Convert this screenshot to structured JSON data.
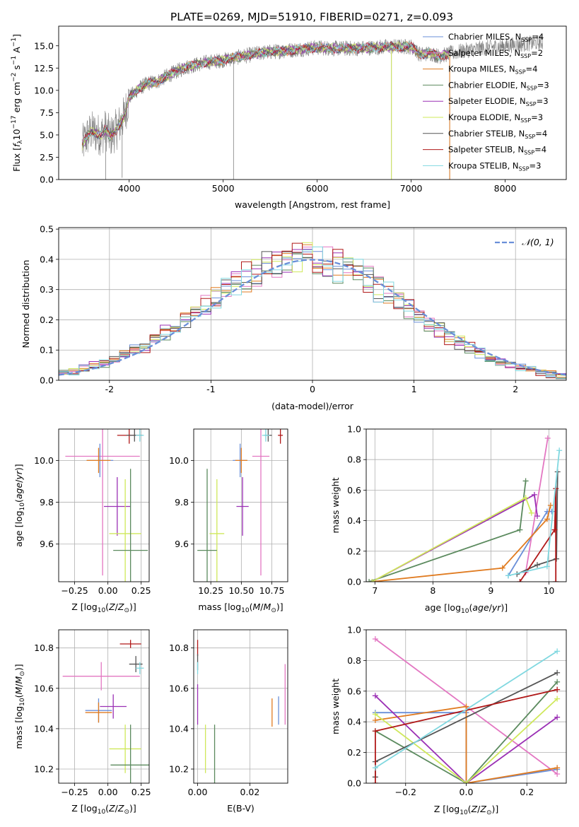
{
  "figure_title": "PLATE=0269, MJD=51910, FIBERID=0271, z=0.093",
  "colors": {
    "Chabrier MILES": "#6a8fd8",
    "Salpeter MILES": "#e377c2",
    "Kroupa MILES": "#e07b20",
    "Chabrier ELODIE": "#5b8a5e",
    "Salpeter ELODIE": "#9b30b5",
    "Kroupa ELODIE": "#cfe85a",
    "Chabrier STELIB": "#555555",
    "Salpeter STELIB": "#b01818",
    "Kroupa STELIB": "#80d8e0"
  },
  "chart_data": [
    {
      "id": "spectrum",
      "type": "line",
      "title": "PLATE=0269, MJD=51910, FIBERID=0271, z=0.093",
      "xlabel": "wavelength [Angstrom, rest frame]",
      "ylabel": "Flux [f_λ10^-17 erg cm^-2 s^-1 A^-1]",
      "xlim": [
        3250,
        8650
      ],
      "ylim": [
        0,
        17.2
      ],
      "xticks": [
        4000,
        5000,
        6000,
        7000,
        8000
      ],
      "yticks": [
        0.0,
        2.5,
        5.0,
        7.5,
        10.0,
        12.5,
        15.0
      ],
      "legend_position": "right",
      "legend": [
        {
          "label": "Chabrier MILES, N_SSP=4",
          "main": "Chabrier MILES, N",
          "sub": "SSP",
          "tail": "=4",
          "color": "#6a8fd8"
        },
        {
          "label": "Salpeter MILES, N_SSP=2",
          "main": "Salpeter MILES, N",
          "sub": "SSP",
          "tail": "=2",
          "color": "#e377c2"
        },
        {
          "label": "Kroupa MILES, N_SSP=4",
          "main": "Kroupa MILES, N",
          "sub": "SSP",
          "tail": "=4",
          "color": "#e07b20"
        },
        {
          "label": "Chabrier ELODIE, N_SSP=3",
          "main": "Chabrier ELODIE, N",
          "sub": "SSP",
          "tail": "=3",
          "color": "#5b8a5e"
        },
        {
          "label": "Salpeter ELODIE, N_SSP=3",
          "main": "Salpeter ELODIE, N",
          "sub": "SSP",
          "tail": "=3",
          "color": "#9b30b5"
        },
        {
          "label": "Kroupa ELODIE, N_SSP=3",
          "main": "Kroupa ELODIE, N",
          "sub": "SSP",
          "tail": "=3",
          "color": "#cfe85a"
        },
        {
          "label": "Chabrier STELIB, N_SSP=4",
          "main": "Chabrier STELIB, N",
          "sub": "SSP",
          "tail": "=4",
          "color": "#555555"
        },
        {
          "label": "Salpeter STELIB, N_SSP=4",
          "main": "Salpeter STELIB, N",
          "sub": "SSP",
          "tail": "=4",
          "color": "#b01818"
        },
        {
          "label": "Kroupa STELIB, N_SSP=3",
          "main": "Kroupa STELIB, N",
          "sub": "SSP",
          "tail": "=3",
          "color": "#80d8e0"
        }
      ],
      "model_color": "#80d8e0",
      "model_wavelength_range": [
        3500,
        7400
      ],
      "data_color": "#808080",
      "data_wavelength_range": [
        3500,
        8400
      ],
      "continuum_x": [
        3500,
        3550,
        3600,
        3650,
        3700,
        3750,
        3800,
        3850,
        3900,
        3950,
        4000,
        4100,
        4200,
        4300,
        4400,
        4500,
        4600,
        4800,
        5000,
        5200,
        5400,
        5600,
        5800,
        6000,
        6200,
        6400,
        6600,
        6800,
        7000,
        7100,
        7200,
        7300,
        7400,
        7600,
        7800,
        8000,
        8200,
        8400
      ],
      "continuum_y": [
        3.8,
        4.8,
        5.4,
        5.2,
        5.0,
        5.6,
        4.8,
        5.4,
        6.2,
        7.2,
        9.2,
        10.2,
        10.8,
        11.0,
        11.6,
        12.1,
        12.6,
        13.1,
        13.4,
        13.8,
        14.2,
        14.4,
        14.6,
        14.8,
        14.7,
        14.7,
        14.8,
        14.9,
        14.9,
        14.0,
        14.2,
        13.8,
        14.1,
        14.5,
        14.8,
        15.0,
        15.2,
        15.4
      ],
      "dips": [
        {
          "x": 3750,
          "y": 0.0
        },
        {
          "x": 3925,
          "y": 0.2
        },
        {
          "x": 5110,
          "y": 0.0
        },
        {
          "x": 6790,
          "y": 0.0
        },
        {
          "x": 7410,
          "y": 0.0
        }
      ]
    },
    {
      "id": "residuals",
      "type": "line",
      "xlabel": "(data-model)/error",
      "ylabel": "Normed distribution",
      "xlim": [
        -2.5,
        2.5
      ],
      "ylim": [
        0,
        0.505
      ],
      "xticks": [
        -2,
        -1,
        0,
        1,
        2
      ],
      "yticks": [
        0.0,
        0.1,
        0.2,
        0.3,
        0.4,
        0.5
      ],
      "grid": true,
      "legend_position": "top-right",
      "gaussian": {
        "label": "𝒩(0, 1)",
        "mean": 0,
        "sigma": 1,
        "color": "#6a8fd8"
      },
      "bin_width": 0.1,
      "bin_start": -2.5,
      "bin_count": 50
    },
    {
      "id": "age_vs_Z",
      "type": "scatter",
      "xlabel": "Z [log10(Z/Z⊙)]",
      "ylabel": "age [log10(age/yr)]",
      "xlim": [
        -0.37,
        0.31
      ],
      "ylim": [
        9.42,
        10.15
      ],
      "xticks": [
        -0.25,
        0.0,
        0.25
      ],
      "yticks": [
        9.6,
        9.8,
        10.0
      ],
      "points": [
        {
          "name": "Salpeter MILES",
          "x": -0.04,
          "y": 10.02,
          "xerr": 0.28,
          "yerr": 0.57
        },
        {
          "name": "Chabrier MILES",
          "x": -0.06,
          "y": 10.0,
          "xerr": 0.1,
          "yerr": 0.08
        },
        {
          "name": "Kroupa MILES",
          "x": -0.07,
          "y": 10.0,
          "xerr": 0.09,
          "yerr": 0.06
        },
        {
          "name": "Salpeter STELIB",
          "x": 0.16,
          "y": 10.12,
          "xerr": 0.09,
          "yerr": 0.04
        },
        {
          "name": "Chabrier STELIB",
          "x": 0.2,
          "y": 10.12,
          "xerr": 0.06,
          "yerr": 0.03
        },
        {
          "name": "Kroupa STELIB",
          "x": 0.24,
          "y": 10.12,
          "xerr": 0.03,
          "yerr": 0.03
        },
        {
          "name": "Salpeter ELODIE",
          "x": 0.07,
          "y": 9.78,
          "xerr": 0.1,
          "yerr": 0.14
        },
        {
          "name": "Kroupa ELODIE",
          "x": 0.13,
          "y": 9.65,
          "xerr": 0.12,
          "yerr": 0.26
        },
        {
          "name": "Chabrier ELODIE",
          "x": 0.17,
          "y": 9.57,
          "xerr": 0.13,
          "yerr": 0.39
        }
      ]
    },
    {
      "id": "age_vs_mass",
      "type": "scatter",
      "xlabel": "mass [log10(M/M⊙)]",
      "ylabel": "",
      "xlim": [
        10.11,
        10.88
      ],
      "ylim": [
        9.42,
        10.15
      ],
      "xticks": [
        10.25,
        10.5,
        10.75
      ],
      "yticks": [
        9.6,
        9.8,
        10.0
      ],
      "points": [
        {
          "name": "Salpeter MILES",
          "x": 10.66,
          "y": 10.02,
          "xerr": 0.07,
          "yerr": 0.57
        },
        {
          "name": "Chabrier MILES",
          "x": 10.49,
          "y": 10.0,
          "xerr": 0.06,
          "yerr": 0.08
        },
        {
          "name": "Kroupa MILES",
          "x": 10.5,
          "y": 10.0,
          "xerr": 0.05,
          "yerr": 0.06
        },
        {
          "name": "Salpeter STELIB",
          "x": 10.82,
          "y": 10.12,
          "xerr": 0.02,
          "yerr": 0.04
        },
        {
          "name": "Chabrier STELIB",
          "x": 10.72,
          "y": 10.12,
          "xerr": 0.03,
          "yerr": 0.03
        },
        {
          "name": "Kroupa STELIB",
          "x": 10.7,
          "y": 10.12,
          "xerr": 0.03,
          "yerr": 0.03
        },
        {
          "name": "Salpeter ELODIE",
          "x": 10.51,
          "y": 9.78,
          "xerr": 0.05,
          "yerr": 0.14
        },
        {
          "name": "Kroupa ELODIE",
          "x": 10.3,
          "y": 9.65,
          "xerr": 0.06,
          "yerr": 0.26
        },
        {
          "name": "Chabrier ELODIE",
          "x": 10.22,
          "y": 9.57,
          "xerr": 0.08,
          "yerr": 0.39
        }
      ]
    },
    {
      "id": "weight_vs_age",
      "type": "line",
      "xlabel": "age [log10(age/yr)]",
      "ylabel": "mass weight",
      "xlim": [
        6.85,
        10.3
      ],
      "ylim": [
        0,
        1.0
      ],
      "xticks": [
        7,
        8,
        9,
        10
      ],
      "yticks": [
        0.0,
        0.2,
        0.4,
        0.6,
        0.8,
        1.0
      ],
      "series": [
        {
          "name": "Chabrier MILES",
          "x": [
            9.3,
            9.97,
            10.05
          ],
          "y": [
            0.04,
            0.46,
            0.46
          ]
        },
        {
          "name": "Salpeter MILES",
          "x": [
            9.6,
            9.98
          ],
          "y": [
            0.06,
            0.94
          ]
        },
        {
          "name": "Kroupa MILES",
          "x": [
            6.95,
            9.2,
            9.97,
            10.03
          ],
          "y": [
            0.0,
            0.09,
            0.41,
            0.5
          ]
        },
        {
          "name": "Chabrier ELODIE",
          "x": [
            6.9,
            9.5,
            9.6
          ],
          "y": [
            0.0,
            0.34,
            0.66
          ]
        },
        {
          "name": "Salpeter ELODIE",
          "x": [
            6.95,
            9.75,
            9.8
          ],
          "y": [
            0.0,
            0.57,
            0.43
          ]
        },
        {
          "name": "Kroupa ELODIE",
          "x": [
            6.95,
            9.6,
            9.7
          ],
          "y": [
            0.0,
            0.55,
            0.45
          ]
        },
        {
          "name": "Chabrier STELIB",
          "x": [
            9.45,
            9.8,
            10.13,
            10.15
          ],
          "y": [
            0.05,
            0.11,
            0.15,
            0.72
          ]
        },
        {
          "name": "Salpeter STELIB",
          "x": [
            9.5,
            10.1,
            10.12,
            10.12
          ],
          "y": [
            0.0,
            0.34,
            0.61,
            0.0
          ]
        },
        {
          "name": "Kroupa STELIB",
          "x": [
            9.3,
            9.97,
            10.18
          ],
          "y": [
            0.04,
            0.1,
            0.86
          ]
        }
      ]
    },
    {
      "id": "mass_vs_Z",
      "type": "scatter",
      "xlabel": "Z [log10(Z/Z⊙)]",
      "ylabel": "mass [log10(M/M⊙)]",
      "xlim": [
        -0.37,
        0.31
      ],
      "ylim": [
        10.13,
        10.89
      ],
      "xticks": [
        -0.25,
        0.0,
        0.25
      ],
      "yticks": [
        10.2,
        10.4,
        10.6,
        10.8
      ],
      "points": [
        {
          "name": "Salpeter MILES",
          "x": -0.05,
          "y": 10.66,
          "xerr": 0.29,
          "yerr": 0.07
        },
        {
          "name": "Chabrier MILES",
          "x": -0.07,
          "y": 10.49,
          "xerr": 0.1,
          "yerr": 0.06
        },
        {
          "name": "Kroupa MILES",
          "x": -0.07,
          "y": 10.48,
          "xerr": 0.1,
          "yerr": 0.05
        },
        {
          "name": "Salpeter ELODIE",
          "x": 0.04,
          "y": 10.51,
          "xerr": 0.1,
          "yerr": 0.06
        },
        {
          "name": "Kroupa ELODIE",
          "x": 0.13,
          "y": 10.3,
          "xerr": 0.12,
          "yerr": 0.12
        },
        {
          "name": "Chabrier ELODIE",
          "x": 0.17,
          "y": 10.22,
          "xerr": 0.15,
          "yerr": 0.2
        },
        {
          "name": "Salpeter STELIB",
          "x": 0.17,
          "y": 10.82,
          "xerr": 0.08,
          "yerr": 0.02
        },
        {
          "name": "Chabrier STELIB",
          "x": 0.21,
          "y": 10.72,
          "xerr": 0.05,
          "yerr": 0.04
        },
        {
          "name": "Kroupa STELIB",
          "x": 0.24,
          "y": 10.7,
          "xerr": 0.03,
          "yerr": 0.03
        }
      ]
    },
    {
      "id": "mass_vs_EBV",
      "type": "scatter",
      "xlabel": "E(B-V)",
      "ylabel": "",
      "xlim": [
        -0.0015,
        0.0345
      ],
      "ylim": [
        10.13,
        10.89
      ],
      "xticks": [
        0.0,
        0.02
      ],
      "yticks": [
        10.2,
        10.4,
        10.6,
        10.8
      ],
      "points": [
        {
          "name": "Salpeter STELIB",
          "x": 0.0,
          "y": 10.8,
          "xerr": 0.0,
          "yerr": 0.04
        },
        {
          "name": "Chabrier STELIB",
          "x": 0.0,
          "y": 10.73,
          "xerr": 0.0,
          "yerr": 0.04
        },
        {
          "name": "Kroupa STELIB",
          "x": 0.0,
          "y": 10.7,
          "xerr": 0.0,
          "yerr": 0.03
        },
        {
          "name": "Salpeter ELODIE",
          "x": 0.0,
          "y": 10.52,
          "xerr": 0.0,
          "yerr": 0.1
        },
        {
          "name": "Kroupa ELODIE",
          "x": 0.003,
          "y": 10.3,
          "xerr": 0.0,
          "yerr": 0.12
        },
        {
          "name": "Chabrier ELODIE",
          "x": 0.0065,
          "y": 10.22,
          "xerr": 0.0,
          "yerr": 0.2
        },
        {
          "name": "Kroupa MILES",
          "x": 0.0285,
          "y": 10.48,
          "xerr": 0.0,
          "yerr": 0.07
        },
        {
          "name": "Chabrier MILES",
          "x": 0.031,
          "y": 10.49,
          "xerr": 0.0,
          "yerr": 0.07
        },
        {
          "name": "Salpeter MILES",
          "x": 0.0335,
          "y": 10.57,
          "xerr": 0.0,
          "yerr": 0.15
        }
      ]
    },
    {
      "id": "weight_vs_Z",
      "type": "line",
      "xlabel": "Z [log10(Z/Z⊙)]",
      "ylabel": "mass weight",
      "xlim": [
        -0.33,
        0.33
      ],
      "ylim": [
        0,
        1.0
      ],
      "xticks": [
        -0.2,
        0.0,
        0.2
      ],
      "yticks": [
        0.0,
        0.2,
        0.4,
        0.6,
        0.8,
        1.0
      ],
      "series": [
        {
          "name": "Chabrier MILES",
          "x": [
            -0.3,
            0.0,
            0.0,
            0.3
          ],
          "y": [
            0.46,
            0.46,
            0.0,
            0.09
          ]
        },
        {
          "name": "Salpeter MILES",
          "x": [
            -0.3,
            0.3
          ],
          "y": [
            0.94,
            0.06
          ]
        },
        {
          "name": "Kroupa MILES",
          "x": [
            -0.3,
            0.0,
            0.0,
            0.3
          ],
          "y": [
            0.41,
            0.5,
            0.0,
            0.1
          ]
        },
        {
          "name": "Chabrier ELODIE",
          "x": [
            -0.3,
            0.0,
            0.3
          ],
          "y": [
            0.34,
            0.0,
            0.66
          ]
        },
        {
          "name": "Salpeter ELODIE",
          "x": [
            -0.3,
            0.0,
            0.3
          ],
          "y": [
            0.57,
            0.0,
            0.43
          ]
        },
        {
          "name": "Kroupa ELODIE",
          "x": [
            -0.3,
            0.0,
            0.3
          ],
          "y": [
            0.45,
            0.0,
            0.55
          ]
        },
        {
          "name": "Chabrier STELIB",
          "x": [
            -0.3,
            -0.3,
            0.3
          ],
          "y": [
            0.04,
            0.14,
            0.72
          ]
        },
        {
          "name": "Salpeter STELIB",
          "x": [
            -0.3,
            -0.3,
            0.3
          ],
          "y": [
            0.0,
            0.34,
            0.61
          ]
        },
        {
          "name": "Kroupa STELIB",
          "x": [
            -0.3,
            0.3
          ],
          "y": [
            0.1,
            0.86
          ]
        }
      ]
    }
  ]
}
